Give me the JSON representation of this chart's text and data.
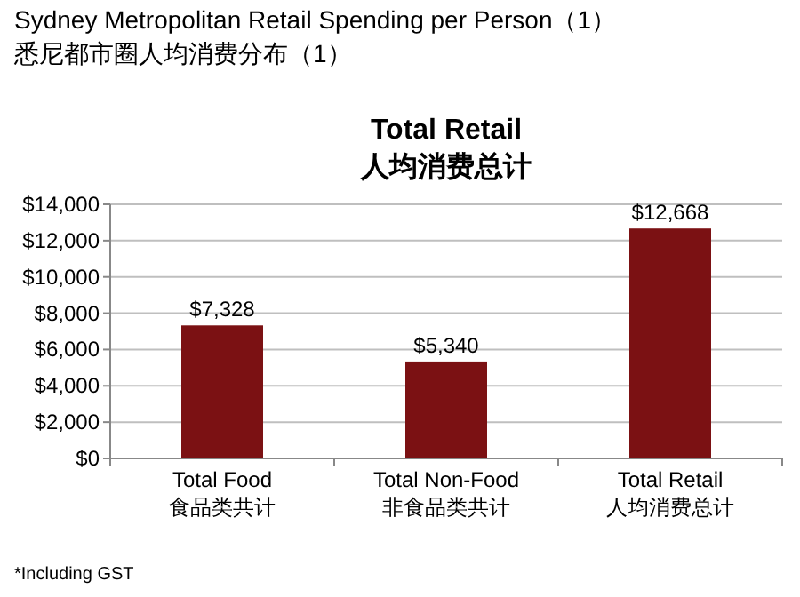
{
  "chart_data": {
    "type": "bar",
    "title": "Total Retail",
    "subtitle": "人均消费总计",
    "annotations": [
      "Sydney  Metropolitan Retail Spending per Person（1）",
      "悉尼都市圈人均消费分布（1）",
      "*Including GST"
    ],
    "categories": [
      "Total Food\n食品类共计",
      "Total Non-Food\n非食品类共计",
      "Total Retail\n人均消费总计"
    ],
    "values": [
      7328,
      5340,
      12668
    ],
    "value_labels": [
      "$7,328",
      "$5,340",
      "$12,668"
    ],
    "color": "#7b1113",
    "ylim": [
      0,
      14000
    ],
    "yticks": [
      {
        "value": 0,
        "label": "$0"
      },
      {
        "value": 2000,
        "label": "$2,000"
      },
      {
        "value": 4000,
        "label": "$4,000"
      },
      {
        "value": 6000,
        "label": "$6,000"
      },
      {
        "value": 8000,
        "label": "$8,000"
      },
      {
        "value": 10000,
        "label": "$10,000"
      },
      {
        "value": 12000,
        "label": "$12,000"
      },
      {
        "value": 14000,
        "label": "$14,000"
      }
    ],
    "grid": "y"
  }
}
